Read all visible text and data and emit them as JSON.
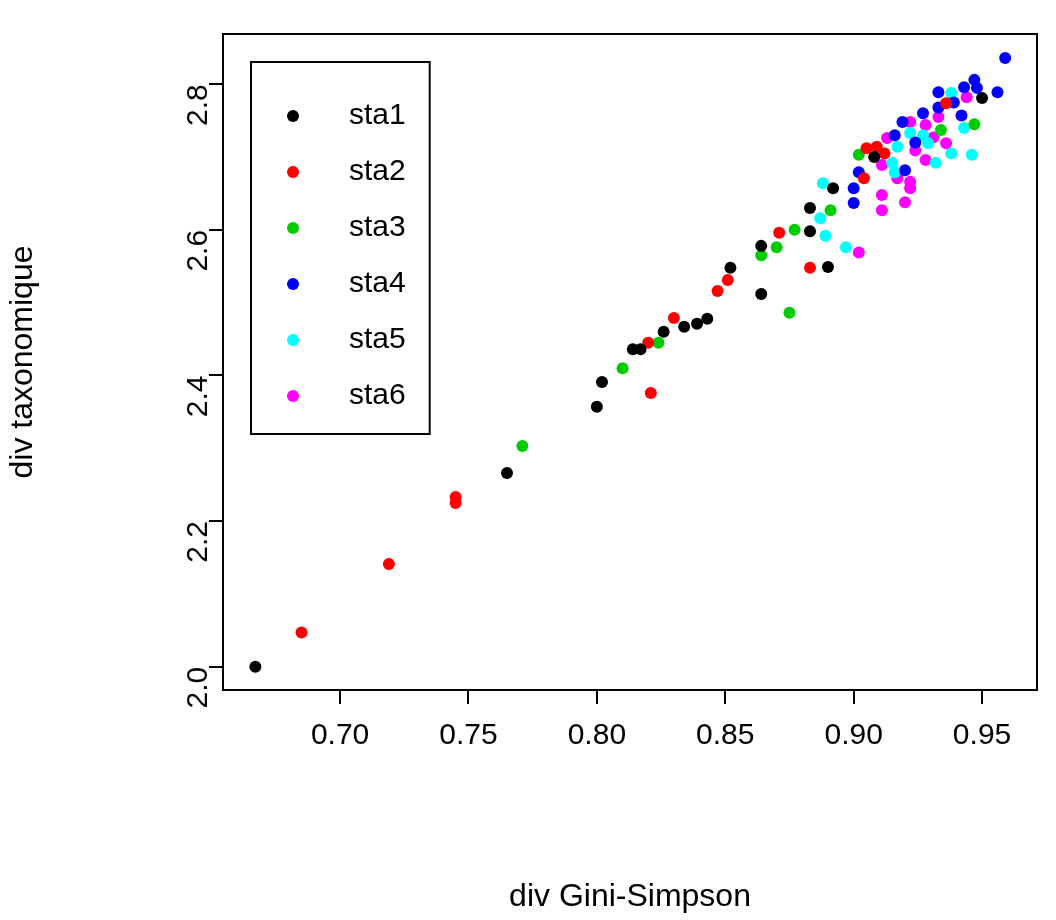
{
  "chart_data": {
    "type": "scatter",
    "xlabel": "div Gini-Simpson",
    "ylabel": "div taxonomique",
    "xlim": [
      0.6544,
      0.9714
    ],
    "ylim": [
      1.968,
      2.869
    ],
    "xticks": [
      {
        "value": 0.7,
        "label": "0.70"
      },
      {
        "value": 0.75,
        "label": "0.75"
      },
      {
        "value": 0.8,
        "label": "0.80"
      },
      {
        "value": 0.85,
        "label": "0.85"
      },
      {
        "value": 0.9,
        "label": "0.90"
      },
      {
        "value": 0.95,
        "label": "0.95"
      }
    ],
    "yticks": [
      {
        "value": 2.0,
        "label": "2.0"
      },
      {
        "value": 2.2,
        "label": "2.2"
      },
      {
        "value": 2.4,
        "label": "2.4"
      },
      {
        "value": 2.6,
        "label": "2.6"
      },
      {
        "value": 2.8,
        "label": "2.8"
      }
    ],
    "grid": false,
    "legend": "top left",
    "marker": "circle",
    "series": [
      {
        "name": "sta1",
        "color": "#000000",
        "x": [
          0.667,
          0.765,
          0.8,
          0.802,
          0.814,
          0.817,
          0.826,
          0.834,
          0.839,
          0.843,
          0.852,
          0.864,
          0.864,
          0.883,
          0.883,
          0.89,
          0.892,
          0.908,
          0.95
        ],
        "values": [
          2.0,
          2.266,
          2.357,
          2.391,
          2.436,
          2.436,
          2.46,
          2.467,
          2.471,
          2.478,
          2.548,
          2.578,
          2.512,
          2.63,
          2.598,
          2.549,
          2.657,
          2.7,
          2.781
        ]
      },
      {
        "name": "sta2",
        "color": "#ff0000",
        "x": [
          0.685,
          0.719,
          0.745,
          0.745,
          0.82,
          0.821,
          0.83,
          0.847,
          0.851,
          0.871,
          0.883,
          0.904,
          0.905,
          0.909,
          0.912,
          0.936
        ],
        "values": [
          2.047,
          2.141,
          2.233,
          2.225,
          2.445,
          2.376,
          2.479,
          2.516,
          2.531,
          2.596,
          2.548,
          2.671,
          2.712,
          2.714,
          2.705,
          2.774
        ]
      },
      {
        "name": "sta3",
        "color": "#00cd00",
        "x": [
          0.771,
          0.81,
          0.824,
          0.864,
          0.87,
          0.875,
          0.877,
          0.891,
          0.902,
          0.934,
          0.947
        ],
        "values": [
          2.303,
          2.41,
          2.445,
          2.565,
          2.576,
          2.486,
          2.6,
          2.627,
          2.703,
          2.737,
          2.745
        ]
      },
      {
        "name": "sta4",
        "color": "#0000ff",
        "x": [
          0.9,
          0.9,
          0.902,
          0.916,
          0.919,
          0.92,
          0.924,
          0.927,
          0.933,
          0.933,
          0.939,
          0.942,
          0.943,
          0.947,
          0.948,
          0.956,
          0.959
        ],
        "values": [
          2.657,
          2.637,
          2.679,
          2.73,
          2.748,
          2.682,
          2.72,
          2.76,
          2.768,
          2.789,
          2.775,
          2.757,
          2.796,
          2.806,
          2.795,
          2.789,
          2.836
        ]
      },
      {
        "name": "sta5",
        "color": "#00ffff",
        "x": [
          0.887,
          0.888,
          0.889,
          0.897,
          0.9,
          0.915,
          0.916,
          0.917,
          0.922,
          0.927,
          0.929,
          0.932,
          0.938,
          0.938,
          0.943,
          0.946
        ],
        "values": [
          2.616,
          2.664,
          2.592,
          2.576,
          null,
          2.692,
          2.679,
          2.714,
          2.733,
          2.73,
          2.719,
          2.692,
          2.788,
          2.705,
          2.74,
          2.703
        ]
      },
      {
        "name": "sta6",
        "color": "#ff00ff",
        "x": [
          0.902,
          0.911,
          0.911,
          0.911,
          0.913,
          0.917,
          0.92,
          0.922,
          0.922,
          0.922,
          0.924,
          0.927,
          0.928,
          0.928,
          0.931,
          0.933,
          0.936,
          0.941,
          0.944
        ],
        "values": [
          2.569,
          2.689,
          2.648,
          2.627,
          2.726,
          2.671,
          2.638,
          2.666,
          2.657,
          2.748,
          2.709,
          null,
          2.696,
          2.744,
          2.727,
          2.755,
          2.719,
          null,
          2.782
        ]
      }
    ]
  }
}
